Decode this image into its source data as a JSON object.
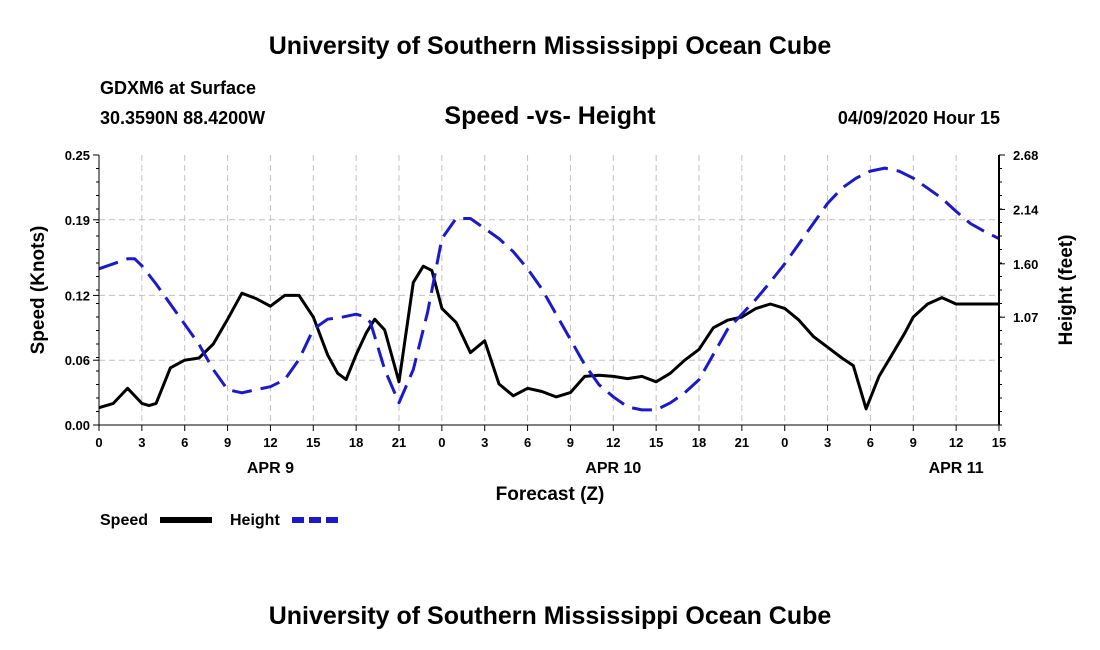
{
  "header": {
    "title": "University of Southern Mississippi Ocean Cube",
    "station": "GDXM6 at Surface",
    "coords": "30.3590N 88.4200W",
    "datetime": "04/09/2020 Hour 15"
  },
  "footer": {
    "title": "University of Southern Mississippi Ocean Cube"
  },
  "legend": {
    "speed_label": "Speed",
    "height_label": "Height"
  },
  "colors": {
    "speed": "#000000",
    "height": "#1a1acc",
    "grid": "#c0c0c0"
  },
  "chart_data": {
    "type": "line",
    "title": "Speed -vs- Height",
    "xlabel": "Forecast (Z)",
    "ylabel_left": "Speed (Knots)",
    "ylabel_right": "Height (feet)",
    "xlim": [
      0,
      63
    ],
    "ylim_left": [
      0,
      0.25
    ],
    "ylim_right": [
      0,
      2.68
    ],
    "x_ticks": [
      0,
      3,
      6,
      9,
      12,
      15,
      18,
      21,
      24,
      27,
      30,
      33,
      36,
      39,
      42,
      45,
      48,
      51,
      54,
      57,
      60,
      63
    ],
    "x_tick_labels": [
      "0",
      "3",
      "6",
      "9",
      "12",
      "15",
      "18",
      "21",
      "0",
      "3",
      "6",
      "9",
      "12",
      "15",
      "18",
      "21",
      "0",
      "3",
      "6",
      "9",
      "12",
      "15"
    ],
    "day_labels": [
      {
        "x": 12,
        "label": "APR 9"
      },
      {
        "x": 36,
        "label": "APR 10"
      },
      {
        "x": 60,
        "label": "APR 11"
      }
    ],
    "y_left_ticks": [
      0.0,
      0.06,
      0.12,
      0.19,
      0.25
    ],
    "y_left_tick_labels": [
      "0.00",
      "0.06",
      "0.12",
      "0.19",
      "0.25"
    ],
    "y_right_ticks": [
      1.07,
      1.6,
      2.14,
      2.68
    ],
    "y_right_tick_labels": [
      "1.07",
      "1.60",
      "2.14",
      "2.68"
    ],
    "grid": true,
    "series": [
      {
        "name": "Speed",
        "axis": "left",
        "style": "solid",
        "x": [
          0,
          1,
          2,
          3,
          3.5,
          4,
          5,
          6,
          7,
          8,
          9,
          10,
          11,
          12,
          13,
          14,
          15,
          16,
          16.7,
          17.3,
          18,
          18.7,
          19.3,
          20,
          21,
          22,
          22.7,
          23.3,
          24,
          25,
          26,
          27,
          28,
          29,
          30,
          31,
          32,
          33,
          34,
          35,
          36,
          37,
          38,
          39,
          40,
          41,
          42,
          43,
          44,
          45,
          46,
          47,
          48,
          49,
          50,
          51,
          52,
          52.8,
          53.7,
          54.6,
          55.5,
          56.4,
          57,
          58,
          59,
          60,
          61,
          62,
          63
        ],
        "values": [
          0.016,
          0.02,
          0.034,
          0.02,
          0.018,
          0.02,
          0.053,
          0.06,
          0.062,
          0.075,
          0.098,
          0.122,
          0.117,
          0.11,
          0.12,
          0.12,
          0.1,
          0.065,
          0.048,
          0.042,
          0.065,
          0.085,
          0.098,
          0.088,
          0.04,
          0.132,
          0.147,
          0.143,
          0.108,
          0.095,
          0.067,
          0.078,
          0.038,
          0.027,
          0.034,
          0.031,
          0.026,
          0.03,
          0.045,
          0.046,
          0.045,
          0.043,
          0.045,
          0.04,
          0.048,
          0.06,
          0.07,
          0.09,
          0.097,
          0.1,
          0.108,
          0.112,
          0.108,
          0.097,
          0.082,
          0.072,
          0.062,
          0.055,
          0.015,
          0.045,
          0.065,
          0.085,
          0.1,
          0.112,
          0.118,
          0.112,
          0.112,
          0.112,
          0.112
        ]
      },
      {
        "name": "Height",
        "axis": "right",
        "style": "dashed",
        "x": [
          0,
          1,
          2,
          2.5,
          3,
          4,
          5,
          6,
          7,
          8,
          9,
          10,
          11,
          12,
          13,
          14,
          15,
          16,
          17,
          18,
          18.5,
          19,
          20,
          21,
          22,
          23,
          24,
          25,
          26,
          27,
          28,
          29,
          30,
          31,
          32,
          33,
          34,
          35,
          36,
          37,
          38,
          39,
          40,
          41,
          42,
          43,
          44,
          45,
          46,
          47,
          48,
          49,
          50,
          51,
          52,
          53,
          54,
          55,
          56,
          57,
          58,
          59,
          60,
          61,
          62,
          63
        ],
        "values": [
          1.55,
          1.6,
          1.65,
          1.65,
          1.58,
          1.4,
          1.2,
          1.0,
          0.8,
          0.55,
          0.35,
          0.32,
          0.35,
          0.38,
          0.45,
          0.65,
          0.95,
          1.05,
          1.07,
          1.1,
          1.08,
          1.02,
          0.55,
          0.22,
          0.55,
          1.12,
          1.85,
          2.05,
          2.05,
          1.95,
          1.85,
          1.72,
          1.55,
          1.35,
          1.1,
          0.85,
          0.6,
          0.4,
          0.28,
          0.18,
          0.15,
          0.15,
          0.22,
          0.32,
          0.45,
          0.7,
          0.95,
          1.1,
          1.25,
          1.42,
          1.6,
          1.8,
          2.0,
          2.2,
          2.35,
          2.45,
          2.52,
          2.55,
          2.52,
          2.45,
          2.35,
          2.25,
          2.12,
          2.0,
          1.92,
          1.85
        ]
      }
    ]
  }
}
